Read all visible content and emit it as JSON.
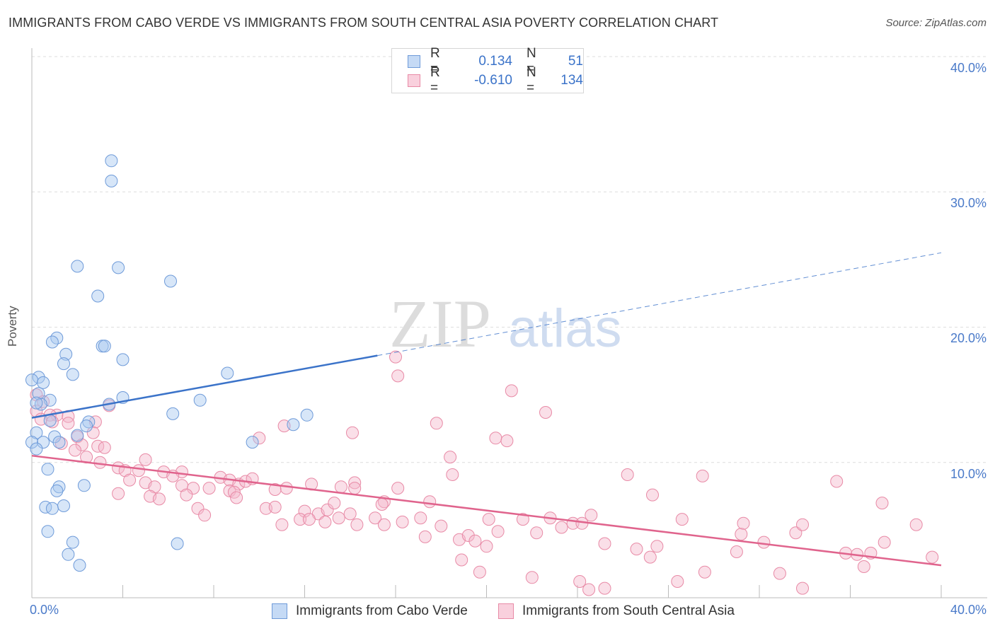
{
  "title": "IMMIGRANTS FROM CABO VERDE VS IMMIGRANTS FROM SOUTH CENTRAL ASIA POVERTY CORRELATION CHART",
  "source": "Source: ZipAtlas.com",
  "watermark": {
    "zip": "ZIP",
    "atlas": "atlas"
  },
  "legend": {
    "rows": [
      {
        "r_label": "R =",
        "r_value": "0.134",
        "n_label": "N =",
        "n_value": "51",
        "color": "#a7c7f0"
      },
      {
        "r_label": "R =",
        "r_value": "-0.610",
        "n_label": "N =",
        "n_value": "134",
        "color": "#f5b8cb"
      }
    ]
  },
  "chart_data": {
    "type": "scatter",
    "ylabel": "Poverty",
    "xlim": [
      0,
      40
    ],
    "ylim": [
      0,
      40
    ],
    "x_tick_labels": [
      "0.0%",
      "40.0%"
    ],
    "y_ticks": [
      10,
      20,
      30,
      40
    ],
    "y_tick_labels": [
      "10.0%",
      "20.0%",
      "30.0%",
      "40.0%"
    ],
    "grid": true,
    "series": [
      {
        "name": "Immigrants from Cabo Verde",
        "color": "#a7c7f0",
        "stroke": "#6f9bd9",
        "trend": {
          "x0": 0,
          "y0": 13.3,
          "x1": 15.2,
          "y1": 17.9,
          "x_extend": 40,
          "y_extend": 25.5,
          "color": "#3b73c9"
        },
        "points": [
          [
            3.5,
            32.3
          ],
          [
            3.5,
            30.8
          ],
          [
            2.0,
            24.5
          ],
          [
            3.8,
            24.4
          ],
          [
            6.1,
            23.4
          ],
          [
            2.9,
            22.3
          ],
          [
            1.1,
            19.2
          ],
          [
            0.9,
            18.9
          ],
          [
            3.1,
            18.6
          ],
          [
            3.2,
            18.6
          ],
          [
            1.5,
            18.0
          ],
          [
            1.4,
            17.3
          ],
          [
            4.0,
            17.6
          ],
          [
            8.6,
            16.6
          ],
          [
            0.3,
            16.3
          ],
          [
            1.8,
            16.5
          ],
          [
            0.0,
            16.1
          ],
          [
            0.5,
            15.9
          ],
          [
            0.3,
            15.1
          ],
          [
            0.8,
            14.6
          ],
          [
            4.0,
            14.8
          ],
          [
            7.4,
            14.6
          ],
          [
            0.4,
            14.3
          ],
          [
            3.4,
            14.3
          ],
          [
            6.2,
            13.6
          ],
          [
            12.1,
            13.5
          ],
          [
            0.8,
            13.1
          ],
          [
            2.5,
            13.0
          ],
          [
            2.4,
            12.7
          ],
          [
            11.5,
            12.8
          ],
          [
            0.2,
            12.2
          ],
          [
            2.0,
            12.0
          ],
          [
            1.0,
            11.9
          ],
          [
            0.0,
            11.5
          ],
          [
            0.5,
            11.5
          ],
          [
            1.2,
            11.5
          ],
          [
            9.7,
            11.5
          ],
          [
            0.2,
            11.0
          ],
          [
            0.7,
            9.5
          ],
          [
            1.2,
            8.2
          ],
          [
            1.1,
            7.9
          ],
          [
            2.3,
            8.3
          ],
          [
            0.6,
            6.7
          ],
          [
            0.9,
            6.6
          ],
          [
            1.4,
            6.8
          ],
          [
            0.7,
            4.9
          ],
          [
            1.8,
            4.1
          ],
          [
            6.4,
            4.0
          ],
          [
            1.6,
            3.2
          ],
          [
            2.1,
            2.4
          ],
          [
            0.2,
            14.4
          ]
        ]
      },
      {
        "name": "Immigrants from South Central Asia",
        "color": "#f5b8cb",
        "stroke": "#e88aa6",
        "trend": {
          "x0": 0,
          "y0": 10.5,
          "x1": 40,
          "y1": 2.4,
          "color": "#e0648d"
        },
        "points": [
          [
            0.2,
            15.0
          ],
          [
            0.5,
            14.5
          ],
          [
            0.2,
            13.8
          ],
          [
            1.1,
            13.5
          ],
          [
            1.6,
            13.4
          ],
          [
            0.8,
            13.5
          ],
          [
            0.4,
            13.2
          ],
          [
            0.9,
            13.0
          ],
          [
            1.6,
            12.9
          ],
          [
            3.4,
            14.2
          ],
          [
            2.8,
            13.0
          ],
          [
            2.7,
            12.2
          ],
          [
            2.0,
            11.9
          ],
          [
            1.3,
            11.4
          ],
          [
            2.2,
            11.3
          ],
          [
            1.9,
            10.9
          ],
          [
            2.9,
            11.2
          ],
          [
            3.2,
            11.1
          ],
          [
            2.4,
            10.4
          ],
          [
            3.0,
            10.0
          ],
          [
            5.0,
            10.2
          ],
          [
            3.8,
            9.6
          ],
          [
            4.1,
            9.4
          ],
          [
            4.7,
            9.4
          ],
          [
            5.8,
            9.3
          ],
          [
            6.6,
            9.3
          ],
          [
            6.2,
            9.0
          ],
          [
            4.3,
            8.7
          ],
          [
            5.0,
            8.5
          ],
          [
            5.4,
            8.2
          ],
          [
            6.6,
            8.3
          ],
          [
            7.1,
            8.1
          ],
          [
            7.8,
            8.1
          ],
          [
            8.3,
            8.9
          ],
          [
            8.7,
            8.7
          ],
          [
            9.1,
            8.4
          ],
          [
            9.4,
            8.6
          ],
          [
            9.7,
            8.8
          ],
          [
            10.7,
            8.0
          ],
          [
            11.2,
            8.1
          ],
          [
            12.3,
            8.4
          ],
          [
            13.6,
            8.2
          ],
          [
            14.2,
            8.5
          ],
          [
            15.5,
            7.1
          ],
          [
            16.1,
            8.1
          ],
          [
            17.5,
            7.1
          ],
          [
            3.8,
            7.7
          ],
          [
            5.2,
            7.5
          ],
          [
            5.6,
            7.3
          ],
          [
            6.8,
            7.6
          ],
          [
            7.3,
            6.6
          ],
          [
            7.6,
            6.1
          ],
          [
            8.7,
            7.9
          ],
          [
            8.9,
            7.8
          ],
          [
            9.0,
            7.4
          ],
          [
            10.3,
            6.6
          ],
          [
            10.7,
            6.7
          ],
          [
            12.0,
            6.4
          ],
          [
            12.6,
            6.2
          ],
          [
            13.0,
            6.5
          ],
          [
            13.3,
            7.0
          ],
          [
            14.0,
            6.2
          ],
          [
            15.1,
            5.9
          ],
          [
            15.4,
            6.9
          ],
          [
            16.3,
            5.6
          ],
          [
            17.1,
            5.9
          ],
          [
            11.0,
            5.4
          ],
          [
            11.8,
            5.8
          ],
          [
            12.2,
            5.8
          ],
          [
            12.9,
            5.6
          ],
          [
            13.5,
            5.9
          ],
          [
            14.3,
            5.4
          ],
          [
            15.5,
            5.4
          ],
          [
            17.3,
            4.5
          ],
          [
            18.0,
            5.3
          ],
          [
            18.8,
            4.3
          ],
          [
            19.2,
            4.6
          ],
          [
            19.5,
            4.2
          ],
          [
            20.1,
            5.8
          ],
          [
            20.5,
            4.9
          ],
          [
            21.6,
            5.8
          ],
          [
            22.2,
            4.8
          ],
          [
            22.8,
            5.9
          ],
          [
            23.3,
            5.2
          ],
          [
            23.8,
            5.5
          ],
          [
            24.2,
            5.5
          ],
          [
            24.6,
            6.1
          ],
          [
            25.2,
            4.0
          ],
          [
            26.6,
            3.6
          ],
          [
            27.2,
            3.0
          ],
          [
            27.5,
            3.8
          ],
          [
            26.2,
            9.1
          ],
          [
            27.3,
            7.6
          ],
          [
            28.6,
            5.8
          ],
          [
            29.5,
            9.0
          ],
          [
            31.2,
            4.7
          ],
          [
            29.6,
            1.9
          ],
          [
            31.0,
            3.4
          ],
          [
            31.3,
            5.5
          ],
          [
            32.2,
            4.1
          ],
          [
            32.9,
            1.8
          ],
          [
            33.9,
            0.7
          ],
          [
            33.6,
            4.8
          ],
          [
            33.9,
            5.4
          ],
          [
            35.4,
            8.6
          ],
          [
            35.8,
            3.3
          ],
          [
            36.3,
            3.2
          ],
          [
            36.6,
            2.3
          ],
          [
            36.9,
            3.3
          ],
          [
            37.4,
            7.0
          ],
          [
            37.5,
            4.1
          ],
          [
            38.9,
            5.4
          ],
          [
            39.6,
            3.0
          ],
          [
            14.1,
            12.2
          ],
          [
            17.8,
            12.9
          ],
          [
            20.4,
            11.8
          ],
          [
            20.9,
            11.6
          ],
          [
            18.4,
            10.4
          ],
          [
            10.0,
            11.8
          ],
          [
            11.1,
            12.7
          ],
          [
            16.1,
            16.4
          ],
          [
            14.2,
            8.1
          ],
          [
            16.0,
            17.8
          ],
          [
            21.1,
            15.3
          ],
          [
            22.6,
            13.7
          ],
          [
            20.0,
            3.8
          ],
          [
            22.0,
            1.5
          ],
          [
            18.9,
            2.8
          ],
          [
            24.1,
            1.2
          ],
          [
            24.5,
            0.6
          ],
          [
            25.2,
            0.7
          ],
          [
            28.4,
            1.2
          ],
          [
            18.5,
            9.1
          ],
          [
            19.7,
            1.9
          ]
        ]
      }
    ]
  }
}
